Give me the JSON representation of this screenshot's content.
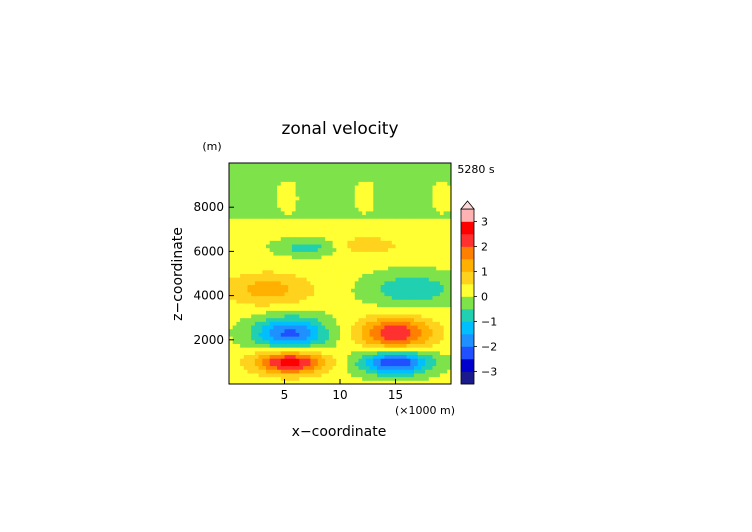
{
  "chart_data": {
    "type": "heatmap",
    "title": "zonal velocity",
    "xlabel": "x−coordinate",
    "ylabel": "z−coordinate",
    "x_unit": "(×1000 m)",
    "y_unit": "(m)",
    "time_label": "5280 s",
    "xlim": [
      0,
      20
    ],
    "ylim": [
      0,
      10000
    ],
    "x_ticks": [
      5,
      10,
      15
    ],
    "x_tick_labels": [
      "5",
      "10",
      "15"
    ],
    "y_ticks": [
      2000,
      4000,
      6000,
      8000
    ],
    "y_tick_labels": [
      "2000",
      "4000",
      "6000",
      "8000"
    ],
    "grid": false,
    "colorbar": {
      "ticks": [
        3,
        2,
        1,
        0,
        -1,
        -2,
        -3
      ],
      "tick_labels": [
        "3",
        "2",
        "1",
        "0",
        "−1",
        "−2",
        "−3"
      ],
      "levels": [
        -3.5,
        -3,
        -2.5,
        -2,
        -1.5,
        -1,
        -0.5,
        0,
        0.5,
        1,
        1.5,
        2,
        2.5,
        3,
        3.5
      ],
      "extend_max": true,
      "colors": [
        "#1a1a8c",
        "#0000cd",
        "#2050ff",
        "#1e90ff",
        "#00bfff",
        "#20d0b0",
        "#7ee34a",
        "#ffff33",
        "#ffd21e",
        "#ffb000",
        "#ff8000",
        "#ff3030",
        "#ff0000",
        "#ffb2b2"
      ]
    },
    "features": [
      {
        "kind": "extremum",
        "x": 5.5,
        "z": 1000,
        "value": 2.7
      },
      {
        "kind": "extremum",
        "x": 15,
        "z": 1000,
        "value": -2.7
      },
      {
        "kind": "extremum",
        "x": 5.5,
        "z": 2300,
        "value": -2.3
      },
      {
        "kind": "extremum",
        "x": 15,
        "z": 2300,
        "value": 2.3
      },
      {
        "kind": "extremum",
        "x": 3.5,
        "z": 4300,
        "value": 1.1
      },
      {
        "kind": "extremum",
        "x": 16.5,
        "z": 4300,
        "value": -1.1
      },
      {
        "kind": "extremum",
        "x": 7,
        "z": 6200,
        "value": -0.9
      },
      {
        "kind": "extremum",
        "x": 12.5,
        "z": 6300,
        "value": 0.8
      },
      {
        "kind": "background",
        "z_above": 7500,
        "value": -0.1
      }
    ]
  }
}
